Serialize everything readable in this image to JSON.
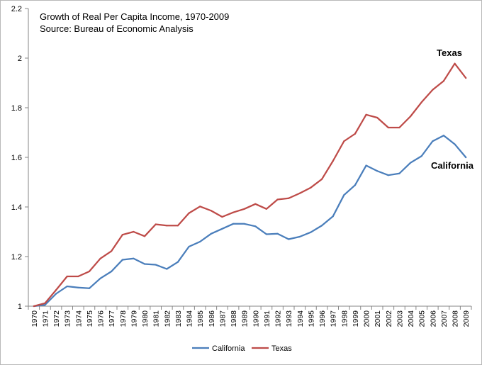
{
  "chart_data": {
    "type": "line",
    "title": "Growth of Real Per Capita Income, 1970-2009",
    "subtitle": "Source: Bureau of Economic Analysis",
    "xlabel": "",
    "ylabel": "",
    "ylim": [
      1,
      2.2
    ],
    "yticks": [
      "1",
      "1.2",
      "1.4",
      "1.6",
      "1.8",
      "2",
      "2.2"
    ],
    "grid": false,
    "legend": "bottom",
    "x": [
      "1970",
      "1971",
      "1972",
      "1973",
      "1974",
      "1975",
      "1976",
      "1977",
      "1978",
      "1979",
      "1980",
      "1981",
      "1982",
      "1983",
      "1984",
      "1985",
      "1986",
      "1987",
      "1988",
      "1989",
      "1990",
      "1991",
      "1992",
      "1993",
      "1994",
      "1995",
      "1996",
      "1997",
      "1998",
      "1999",
      "2000",
      "2001",
      "2002",
      "2003",
      "2004",
      "2005",
      "2006",
      "2007",
      "2008",
      "2009"
    ],
    "series": [
      {
        "name": "California",
        "color": "#4a7ebb",
        "annotation": "California",
        "values": [
          1.0,
          1.005,
          1.05,
          1.08,
          1.075,
          1.072,
          1.112,
          1.14,
          1.187,
          1.192,
          1.17,
          1.167,
          1.15,
          1.178,
          1.24,
          1.26,
          1.292,
          1.312,
          1.332,
          1.332,
          1.322,
          1.29,
          1.292,
          1.27,
          1.28,
          1.298,
          1.325,
          1.362,
          1.448,
          1.488,
          1.567,
          1.545,
          1.528,
          1.535,
          1.578,
          1.605,
          1.665,
          1.688,
          1.653,
          1.6
        ]
      },
      {
        "name": "Texas",
        "color": "#be4b48",
        "annotation": "Texas",
        "values": [
          1.0,
          1.012,
          1.065,
          1.12,
          1.12,
          1.14,
          1.192,
          1.222,
          1.288,
          1.3,
          1.282,
          1.33,
          1.325,
          1.325,
          1.375,
          1.402,
          1.385,
          1.36,
          1.378,
          1.392,
          1.412,
          1.392,
          1.43,
          1.435,
          1.455,
          1.478,
          1.512,
          1.585,
          1.665,
          1.695,
          1.772,
          1.76,
          1.72,
          1.72,
          1.765,
          1.822,
          1.872,
          1.908,
          1.978,
          1.92
        ]
      }
    ]
  }
}
